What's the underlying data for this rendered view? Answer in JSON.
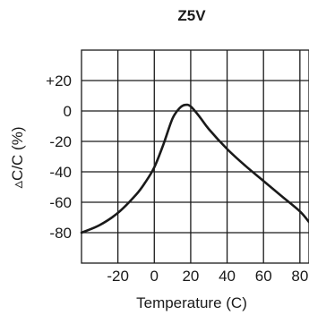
{
  "chart_data": {
    "type": "line",
    "title": "Z5V",
    "xlabel": "Temperature (C)",
    "ylabel": "▵C/C (%)",
    "xlim": [
      -40,
      85
    ],
    "ylim": [
      -100,
      40
    ],
    "x_ticks": [
      -20,
      0,
      20,
      40,
      60,
      80
    ],
    "x_tick_labels": [
      "-20",
      "0",
      "20",
      "40",
      "60",
      "80"
    ],
    "y_ticks": [
      20,
      0,
      -20,
      -40,
      -60,
      -80
    ],
    "y_tick_labels": [
      "+20",
      "0",
      "-20",
      "-40",
      "-60",
      "-80"
    ],
    "x_grid": [
      -20,
      0,
      20,
      40,
      60,
      80
    ],
    "y_grid": [
      20,
      0,
      -20,
      -40,
      -60,
      -80
    ],
    "grid": true,
    "series": [
      {
        "color": "#1a1a1a",
        "x": [
          -40,
          -30,
          -20,
          -10,
          -5,
          0,
          5,
          10,
          14,
          17,
          20,
          25,
          30,
          40,
          50,
          60,
          70,
          80,
          85
        ],
        "y": [
          -80,
          -75,
          -67,
          -55,
          -47,
          -37,
          -22,
          -5,
          2,
          4,
          3,
          -4,
          -12,
          -25,
          -36,
          -46,
          -56,
          -66,
          -73
        ]
      }
    ]
  }
}
